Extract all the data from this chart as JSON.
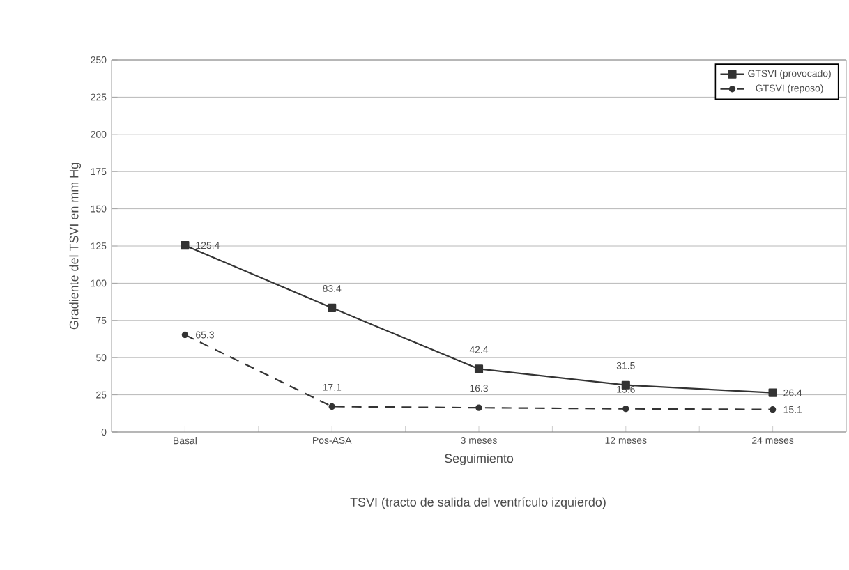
{
  "chart_data": {
    "type": "line",
    "xlabel": "Seguimiento",
    "ylabel": "Gradiente del TSVI en mm Hg",
    "annotations": [
      "TSVI (tracto de salida del ventrículo izquierdo)"
    ],
    "categories": [
      "Basal",
      "Pos-ASA",
      "3 meses",
      "12 meses",
      "24 meses"
    ],
    "series": [
      {
        "name": "GTSVI (provocado)",
        "color": "#333333",
        "values": [
          125.4,
          83.4,
          42.4,
          31.5,
          26.4
        ],
        "marker": "square",
        "line_style": "solid"
      },
      {
        "name": "GTSVI (reposo)",
        "color": "#333333",
        "values": [
          65.3,
          17.1,
          16.3,
          15.6,
          15.1
        ],
        "marker": "circle",
        "line_style": "dashed"
      }
    ],
    "ylim": [
      0,
      250
    ],
    "yticks": [
      0,
      25,
      50,
      75,
      100,
      125,
      150,
      175,
      200,
      225,
      250
    ],
    "data_labels": true,
    "grid": "y",
    "legend": "top right"
  }
}
